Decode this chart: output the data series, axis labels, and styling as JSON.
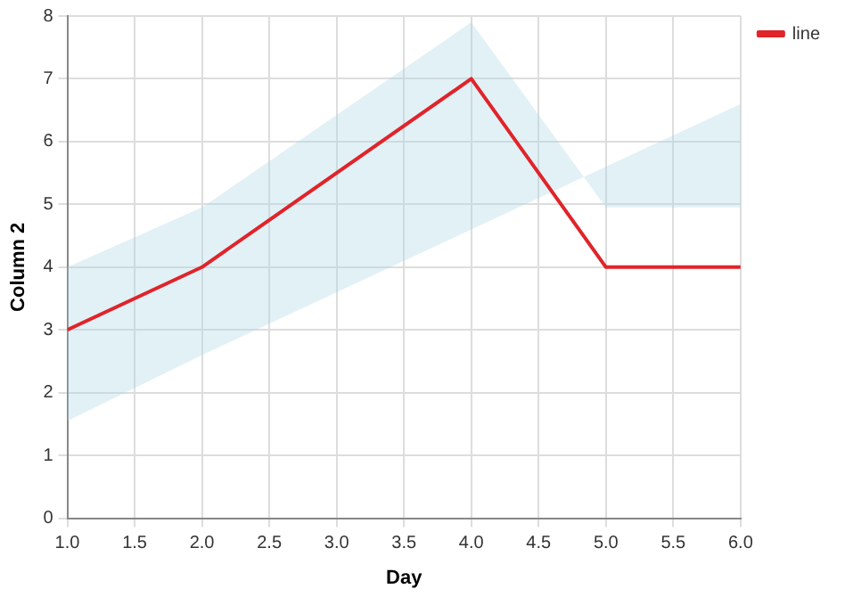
{
  "chart_data": {
    "type": "line",
    "xlabel": "Day",
    "ylabel": "Column 2",
    "x": [
      1,
      2,
      4,
      5,
      6
    ],
    "series": [
      {
        "name": "line",
        "color": "#e0242a",
        "values": [
          3,
          4,
          7,
          4,
          4
        ],
        "lower": [
          1.55,
          2.6,
          4.6,
          5.6,
          6.6
        ],
        "upper": [
          4.0,
          4.95,
          7.9,
          4.95,
          4.95
        ]
      }
    ],
    "xlim": [
      1,
      6
    ],
    "xticks": [
      {
        "value": 1,
        "label": "1.0"
      },
      {
        "value": 1.5,
        "label": "1.5"
      },
      {
        "value": 2,
        "label": "2.0"
      },
      {
        "value": 2.5,
        "label": "2.5"
      },
      {
        "value": 3,
        "label": "3.0"
      },
      {
        "value": 3.5,
        "label": "3.5"
      },
      {
        "value": 4,
        "label": "4.0"
      },
      {
        "value": 4.5,
        "label": "4.5"
      },
      {
        "value": 5,
        "label": "5.0"
      },
      {
        "value": 5.5,
        "label": "5.5"
      },
      {
        "value": 6,
        "label": "6.0"
      }
    ],
    "ylim": [
      0,
      8
    ],
    "yticks": [
      0,
      1,
      2,
      3,
      4,
      5,
      6,
      7,
      8
    ],
    "grid": true,
    "legend": "top right",
    "marker": "none",
    "line_style": "solid"
  }
}
